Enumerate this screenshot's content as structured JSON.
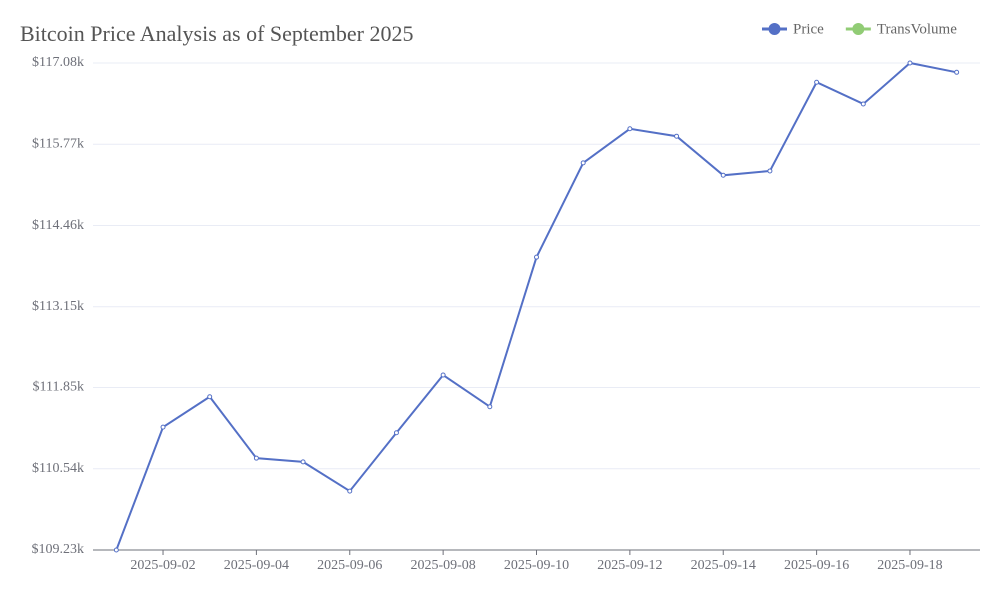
{
  "chart_data": {
    "type": "line",
    "title": "Bitcoin Price Analysis as of September 2025",
    "x": [
      "2025-09-01",
      "2025-09-02",
      "2025-09-03",
      "2025-09-04",
      "2025-09-05",
      "2025-09-06",
      "2025-09-07",
      "2025-09-08",
      "2025-09-09",
      "2025-09-10",
      "2025-09-11",
      "2025-09-12",
      "2025-09-13",
      "2025-09-14",
      "2025-09-15",
      "2025-09-16",
      "2025-09-17",
      "2025-09-18",
      "2025-09-19"
    ],
    "series": [
      {
        "name": "Price",
        "color": "#5470c6",
        "values": [
          109230,
          111210,
          111700,
          110710,
          110650,
          110180,
          111120,
          112050,
          111540,
          113950,
          115470,
          116020,
          115900,
          115270,
          115340,
          116770,
          116420,
          117080,
          116930
        ]
      },
      {
        "name": "TransVolume",
        "color": "#91cc75",
        "values": [
          null,
          null,
          null,
          null,
          null,
          null,
          null,
          null,
          null,
          null,
          null,
          null,
          null,
          null,
          null,
          null,
          null,
          null,
          null
        ]
      }
    ],
    "ylim": [
      109230,
      117080
    ],
    "yticks": [
      {
        "value": 109230,
        "label": "$109.23k"
      },
      {
        "value": 110540,
        "label": "$110.54k"
      },
      {
        "value": 111850,
        "label": "$111.85k"
      },
      {
        "value": 113150,
        "label": "$113.15k"
      },
      {
        "value": 114460,
        "label": "$114.46k"
      },
      {
        "value": 115770,
        "label": "$115.77k"
      },
      {
        "value": 117080,
        "label": "$117.08k"
      }
    ],
    "xticks": [
      "2025-09-02",
      "2025-09-04",
      "2025-09-06",
      "2025-09-08",
      "2025-09-10",
      "2025-09-12",
      "2025-09-14",
      "2025-09-16",
      "2025-09-18"
    ],
    "grid": true,
    "legend": "top-right"
  }
}
